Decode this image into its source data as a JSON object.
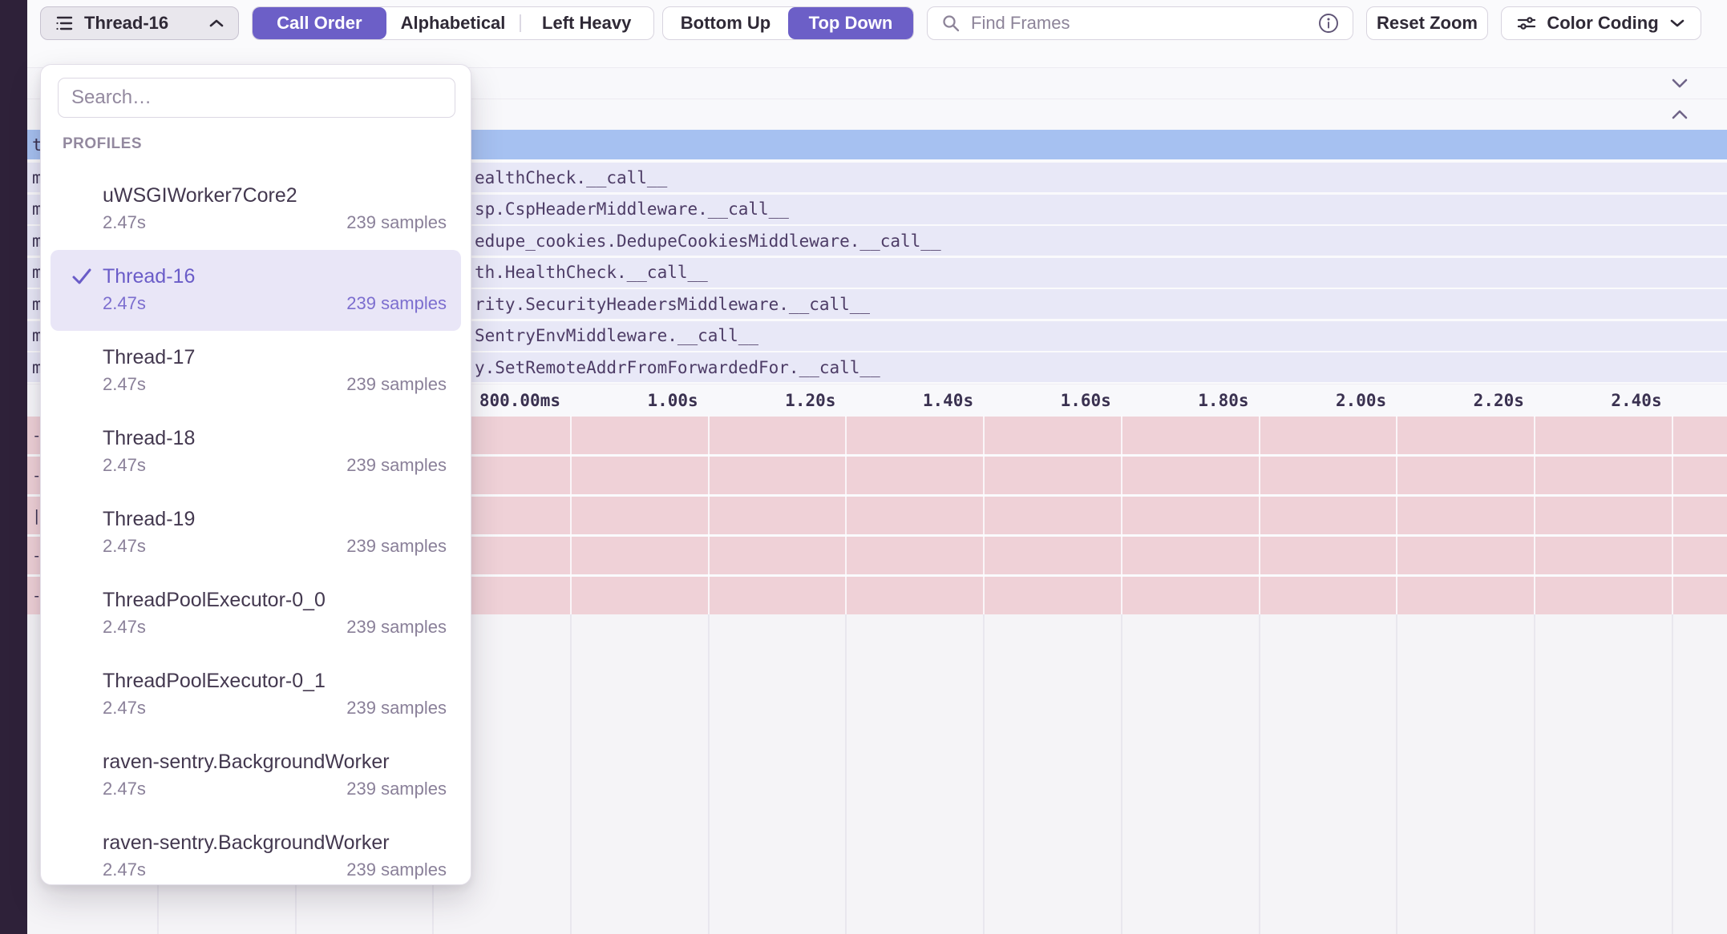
{
  "toolbar": {
    "thread_selector": {
      "label": "Thread-16"
    },
    "sort_modes": [
      {
        "label": "Call Order",
        "selected": true
      },
      {
        "label": "Alphabetical",
        "selected": false
      },
      {
        "label": "Left Heavy",
        "selected": false
      }
    ],
    "direction_modes": [
      {
        "label": "Bottom Up",
        "selected": false
      },
      {
        "label": "Top Down",
        "selected": true
      }
    ],
    "find_frames": {
      "placeholder": "Find Frames",
      "value": ""
    },
    "reset_zoom_label": "Reset Zoom",
    "color_coding_label": "Color Coding"
  },
  "thread_dropdown": {
    "search": {
      "placeholder": "Search…",
      "value": ""
    },
    "section_label": "PROFILES",
    "items": [
      {
        "name": "uWSGIWorker7Core2",
        "duration": "2.47s",
        "samples": "239 samples",
        "selected": false
      },
      {
        "name": "Thread-16",
        "duration": "2.47s",
        "samples": "239 samples",
        "selected": true
      },
      {
        "name": "Thread-17",
        "duration": "2.47s",
        "samples": "239 samples",
        "selected": false
      },
      {
        "name": "Thread-18",
        "duration": "2.47s",
        "samples": "239 samples",
        "selected": false
      },
      {
        "name": "Thread-19",
        "duration": "2.47s",
        "samples": "239 samples",
        "selected": false
      },
      {
        "name": "ThreadPoolExecutor-0_0",
        "duration": "2.47s",
        "samples": "239 samples",
        "selected": false
      },
      {
        "name": "ThreadPoolExecutor-0_1",
        "duration": "2.47s",
        "samples": "239 samples",
        "selected": false
      },
      {
        "name": "raven-sentry.BackgroundWorker",
        "duration": "2.47s",
        "samples": "239 samples",
        "selected": false
      },
      {
        "name": "raven-sentry.BackgroundWorker",
        "duration": "2.47s",
        "samples": "239 samples",
        "selected": false
      }
    ]
  },
  "flamegraph": {
    "selected_row_edge": "t",
    "frame_rows": [
      {
        "edge": "m",
        "text": "ealthCheck.__call__"
      },
      {
        "edge": "m",
        "text": "sp.CspHeaderMiddleware.__call__"
      },
      {
        "edge": "m",
        "text": "edupe_cookies.DedupeCookiesMiddleware.__call__"
      },
      {
        "edge": "m",
        "text": "th.HealthCheck.__call__"
      },
      {
        "edge": "m",
        "text": "rity.SecurityHeadersMiddleware.__call__"
      },
      {
        "edge": "m",
        "text": "SentryEnvMiddleware.__call__"
      },
      {
        "edge": "m",
        "text": "y.SetRemoteAddrFromForwardedFor.__call__"
      }
    ],
    "time_axis_ticks": [
      "800.00ms",
      "1.00s",
      "1.20s",
      "1.40s",
      "1.60s",
      "1.80s",
      "2.00s",
      "2.20s",
      "2.40s"
    ],
    "pink_rows": [
      {
        "edge": "-"
      },
      {
        "edge": "-"
      },
      {
        "edge": "|"
      },
      {
        "edge": "-"
      },
      {
        "edge": "-"
      }
    ]
  },
  "colors": {
    "accent_purple": "#6C5FC7",
    "selected_row_blue": "#A6C1F1",
    "frame_row_lavender": "#E8E8F7",
    "pink_row": "#EFD1D7",
    "sidebar_dark": "#2E2139",
    "selected_item_bg": "#E9E6F7",
    "selected_item_text": "#6A5CC8",
    "page_background": "#FAFAFC"
  }
}
